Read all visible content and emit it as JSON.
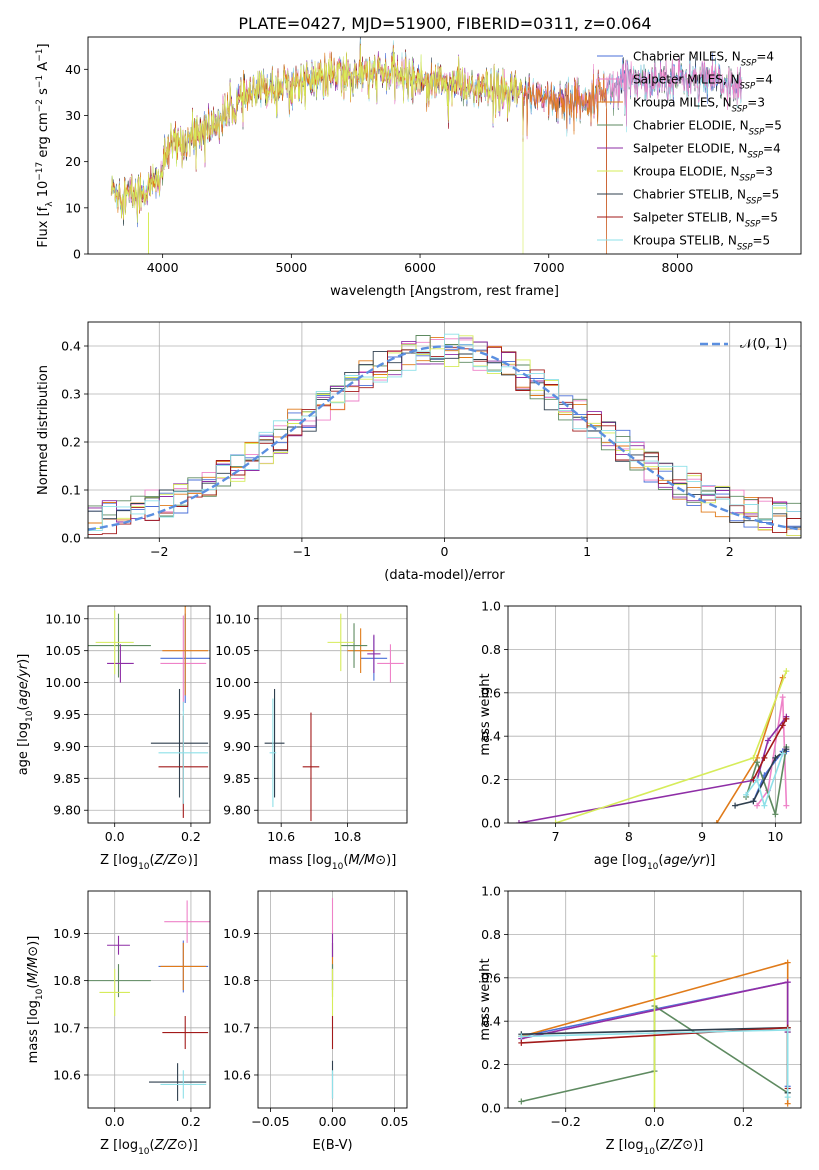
{
  "figure": {
    "title": "PLATE=0427, MJD=51900, FIBERID=0311, z=0.064"
  },
  "colors": [
    "#4a6fd8",
    "#ee82c8",
    "#e07b1a",
    "#5e8a60",
    "#8e2ea6",
    "#d6ec5a",
    "#2f3f4e",
    "#a21a1a",
    "#8ee0e8"
  ],
  "chart_data": [
    {
      "id": "spectrum",
      "type": "line",
      "xlabel": "wavelength [Angstrom, rest frame]",
      "ylabel": "Flux [f_λ 10^-17 erg cm^-2 s^-1 A^-1]",
      "xlim": [
        3420,
        8960
      ],
      "ylim": [
        0,
        47
      ],
      "xticks": [
        4000,
        5000,
        6000,
        7000,
        8000
      ],
      "yticks": [
        0,
        10,
        20,
        30,
        40
      ],
      "grid": false,
      "legend": "upper-right",
      "series": [
        {
          "name": "Chabrier MILES, N_SSP=4",
          "range": [
            3600,
            8500
          ]
        },
        {
          "name": "Salpeter MILES, N_SSP=4",
          "range": [
            3600,
            8500
          ]
        },
        {
          "name": "Kroupa MILES, N_SSP=3",
          "range": [
            3600,
            7450
          ]
        },
        {
          "name": "Chabrier ELODIE, N_SSP=5",
          "range": [
            3600,
            8500
          ]
        },
        {
          "name": "Salpeter ELODIE, N_SSP=4",
          "range": [
            3600,
            7450
          ]
        },
        {
          "name": "Kroupa ELODIE, N_SSP=3",
          "range": [
            3600,
            6800
          ]
        },
        {
          "name": "Chabrier STELIB, N_SSP=5",
          "range": [
            3600,
            8500
          ]
        },
        {
          "name": "Salpeter STELIB, N_SSP=5",
          "range": [
            3600,
            7450
          ]
        },
        {
          "name": "Kroupa STELIB, N_SSP=5",
          "range": [
            3600,
            8500
          ]
        }
      ],
      "continuum": [
        [
          3600,
          14
        ],
        [
          3700,
          13
        ],
        [
          3800,
          13
        ],
        [
          3900,
          14
        ],
        [
          3970,
          16
        ],
        [
          4050,
          23
        ],
        [
          4200,
          25
        ],
        [
          4400,
          28
        ],
        [
          4600,
          33
        ],
        [
          4800,
          36
        ],
        [
          5000,
          37
        ],
        [
          5200,
          38
        ],
        [
          5400,
          39
        ],
        [
          5600,
          39
        ],
        [
          5800,
          39
        ],
        [
          6000,
          38
        ],
        [
          6200,
          37
        ],
        [
          6400,
          36
        ],
        [
          6600,
          35
        ],
        [
          6800,
          35
        ],
        [
          7000,
          34
        ],
        [
          7200,
          33
        ],
        [
          7400,
          35
        ],
        [
          7600,
          38
        ],
        [
          7800,
          38
        ],
        [
          8000,
          38
        ],
        [
          8200,
          37.5
        ],
        [
          8400,
          37
        ],
        [
          8500,
          36
        ]
      ]
    },
    {
      "id": "residuals",
      "type": "histogram",
      "xlabel": "(data-model)/error",
      "ylabel": "Normed distribution",
      "xlim": [
        -2.5,
        2.5
      ],
      "ylim": [
        0,
        0.45
      ],
      "xticks": [
        -2,
        -1,
        0,
        1,
        2
      ],
      "yticks": [
        0.0,
        0.1,
        0.2,
        0.3,
        0.4
      ],
      "grid": true,
      "legend": "upper-right",
      "bins": 50,
      "reference": {
        "name": "𝒩(0, 1)",
        "mean": 0,
        "sigma": 1
      }
    },
    {
      "id": "age-vs-Z",
      "type": "scatter",
      "xlabel": "Z [log10(Z/Z⊙)]",
      "ylabel": "age  [log10(age/yr)]",
      "xlim": [
        -0.07,
        0.25
      ],
      "ylim": [
        9.78,
        10.12
      ],
      "xticks": [
        0.0,
        0.2
      ],
      "yticks": [
        9.8,
        9.85,
        9.9,
        9.95,
        10.0,
        10.05,
        10.1
      ],
      "grid": true,
      "points": [
        {
          "x": 0.185,
          "y": 10.038,
          "xerr": 0.065,
          "yerr": 0.07
        },
        {
          "x": 0.18,
          "y": 10.03,
          "xerr": 0.06,
          "yerr": 0.075
        },
        {
          "x": 0.185,
          "y": 10.05,
          "xerr": 0.06,
          "yerr": 0.07
        },
        {
          "x": 0.01,
          "y": 10.058,
          "xerr": 0.085,
          "yerr": 0.05
        },
        {
          "x": 0.015,
          "y": 10.03,
          "xerr": 0.035,
          "yerr": 0.03
        },
        {
          "x": 0.0,
          "y": 10.063,
          "xerr": 0.05,
          "yerr": 0.05
        },
        {
          "x": 0.17,
          "y": 9.905,
          "xerr": 0.075,
          "yerr": 0.085
        },
        {
          "x": 0.18,
          "y": 9.868,
          "xerr": 0.065,
          "yerr": 0.08
        },
        {
          "x": 0.18,
          "y": 9.89,
          "xerr": 0.065,
          "yerr": 0.08
        }
      ]
    },
    {
      "id": "age-vs-mass",
      "type": "scatter",
      "xlabel": "mass [log10(M/M⊙)]",
      "ylabel": "",
      "xlim": [
        10.53,
        10.98
      ],
      "ylim": [
        9.78,
        10.12
      ],
      "xticks": [
        10.6,
        10.8
      ],
      "yticks": [
        9.8,
        9.85,
        9.9,
        9.95,
        10.0,
        10.05,
        10.1
      ],
      "grid": true,
      "points": [
        {
          "x": 10.88,
          "y": 10.038,
          "xerr": 0.04,
          "yerr": 0.035
        },
        {
          "x": 10.93,
          "y": 10.03,
          "xerr": 0.04,
          "yerr": 0.03
        },
        {
          "x": 10.84,
          "y": 10.05,
          "xerr": 0.04,
          "yerr": 0.035
        },
        {
          "x": 10.82,
          "y": 10.058,
          "xerr": 0.04,
          "yerr": 0.035
        },
        {
          "x": 10.88,
          "y": 10.045,
          "xerr": 0.02,
          "yerr": 0.03
        },
        {
          "x": 10.78,
          "y": 10.063,
          "xerr": 0.04,
          "yerr": 0.045
        },
        {
          "x": 10.58,
          "y": 9.905,
          "xerr": 0.03,
          "yerr": 0.085
        },
        {
          "x": 10.69,
          "y": 9.868,
          "xerr": 0.025,
          "yerr": 0.085
        },
        {
          "x": 10.575,
          "y": 9.89,
          "xerr": 0.01,
          "yerr": 0.085
        }
      ]
    },
    {
      "id": "weight-vs-age",
      "type": "line",
      "xlabel": "age  [log10(age/yr)]",
      "ylabel": "mass weight",
      "xlim": [
        6.35,
        10.35
      ],
      "ylim": [
        0,
        1.0
      ],
      "xticks": [
        7,
        8,
        9,
        10
      ],
      "yticks": [
        0.0,
        0.2,
        0.4,
        0.6,
        0.8,
        1.0
      ],
      "grid": true,
      "series": [
        {
          "x": [
            9.7,
            9.85,
            10.1,
            10.15
          ],
          "y": [
            0.1,
            0.22,
            0.33,
            0.33
          ]
        },
        {
          "x": [
            9.75,
            9.9,
            10.1,
            10.15
          ],
          "y": [
            0.08,
            0.15,
            0.58,
            0.08
          ]
        },
        {
          "x": [
            9.2,
            9.75,
            10.1
          ],
          "y": [
            0.0,
            0.3,
            0.67
          ]
        },
        {
          "x": [
            9.6,
            9.75,
            10.0,
            10.15
          ],
          "y": [
            0.12,
            0.28,
            0.04,
            0.35
          ]
        },
        {
          "x": [
            6.5,
            9.75,
            9.9,
            10.15
          ],
          "y": [
            0.0,
            0.2,
            0.38,
            0.49
          ]
        },
        {
          "x": [
            7.0,
            9.7,
            10.15
          ],
          "y": [
            0.0,
            0.3,
            0.7
          ]
        },
        {
          "x": [
            9.45,
            9.7,
            10.0,
            10.15
          ],
          "y": [
            0.08,
            0.1,
            0.3,
            0.34
          ]
        },
        {
          "x": [
            9.7,
            9.85,
            10.1,
            10.15
          ],
          "y": [
            0.2,
            0.3,
            0.45,
            0.48
          ]
        },
        {
          "x": [
            9.6,
            9.75,
            9.85,
            10.1
          ],
          "y": [
            0.13,
            0.2,
            0.08,
            0.32
          ]
        }
      ]
    },
    {
      "id": "mass-vs-Z",
      "type": "scatter",
      "xlabel": "Z [log10(Z/Z⊙)]",
      "ylabel": "mass [log10(M/M⊙)]",
      "xlim": [
        -0.07,
        0.25
      ],
      "ylim": [
        10.53,
        10.99
      ],
      "xticks": [
        0.0,
        0.2
      ],
      "yticks": [
        10.6,
        10.7,
        10.8,
        10.9
      ],
      "grid": true,
      "points": [
        {
          "x": 0.18,
          "y": 10.83,
          "xerr": 0.065,
          "yerr": 0.055
        },
        {
          "x": 0.19,
          "y": 10.925,
          "xerr": 0.06,
          "yerr": 0.045
        },
        {
          "x": 0.18,
          "y": 10.83,
          "xerr": 0.06,
          "yerr": 0.05
        },
        {
          "x": 0.01,
          "y": 10.8,
          "xerr": 0.085,
          "yerr": 0.035
        },
        {
          "x": 0.01,
          "y": 10.875,
          "xerr": 0.03,
          "yerr": 0.02
        },
        {
          "x": 0.0,
          "y": 10.775,
          "xerr": 0.04,
          "yerr": 0.05
        },
        {
          "x": 0.165,
          "y": 10.585,
          "xerr": 0.075,
          "yerr": 0.04
        },
        {
          "x": 0.185,
          "y": 10.69,
          "xerr": 0.06,
          "yerr": 0.035
        },
        {
          "x": 0.18,
          "y": 10.58,
          "xerr": 0.06,
          "yerr": 0.03
        }
      ]
    },
    {
      "id": "mass-vs-ebv",
      "type": "scatter",
      "xlabel": "E(B-V)",
      "ylabel": "",
      "xlim": [
        -0.06,
        0.06
      ],
      "ylim": [
        10.53,
        10.99
      ],
      "xticks": [
        -0.05,
        0.0,
        0.05
      ],
      "xtick_labels": [
        "−0.05",
        "0.00",
        "0.05"
      ],
      "yticks": [
        10.6,
        10.7,
        10.8,
        10.9
      ],
      "grid": true,
      "points": [
        {
          "x": 0,
          "y": 10.83,
          "xerr": 0,
          "yerr": 0.05
        },
        {
          "x": 0,
          "y": 10.93,
          "xerr": 0,
          "yerr": 0.045
        },
        {
          "x": 0,
          "y": 10.83,
          "xerr": 0,
          "yerr": 0.05
        },
        {
          "x": 0,
          "y": 10.8,
          "xerr": 0,
          "yerr": 0.035
        },
        {
          "x": 0,
          "y": 10.875,
          "xerr": 0,
          "yerr": 0.025
        },
        {
          "x": 0,
          "y": 10.775,
          "xerr": 0,
          "yerr": 0.05
        },
        {
          "x": 0,
          "y": 10.59,
          "xerr": 0,
          "yerr": 0.04
        },
        {
          "x": 0,
          "y": 10.69,
          "xerr": 0,
          "yerr": 0.035
        },
        {
          "x": 0,
          "y": 10.58,
          "xerr": 0,
          "yerr": 0.03
        }
      ]
    },
    {
      "id": "weight-vs-Z",
      "type": "line",
      "xlabel": "Z [log10(Z/Z⊙)]",
      "ylabel": "mass weight",
      "xlim": [
        -0.33,
        0.33
      ],
      "ylim": [
        0,
        1.0
      ],
      "xticks": [
        -0.2,
        0.0,
        0.2
      ],
      "xtick_labels": [
        "−0.2",
        "0.0",
        "0.2"
      ],
      "yticks": [
        0.0,
        0.2,
        0.4,
        0.6,
        0.8,
        1.0
      ],
      "grid": true,
      "series": [
        {
          "x": [
            -0.3,
            0.3,
            0.3
          ],
          "y": [
            0.33,
            0.58,
            0.1
          ]
        },
        {
          "x": [
            -0.3,
            0.3,
            0.3
          ],
          "y": [
            0.32,
            0.58,
            0.36
          ]
        },
        {
          "x": [
            -0.3,
            0.3,
            0.3
          ],
          "y": [
            0.33,
            0.67,
            0.02
          ]
        },
        {
          "x": [
            -0.3,
            0.0,
            0.0,
            0.3,
            0.3
          ],
          "y": [
            0.03,
            0.17,
            0.47,
            0.07,
            0.35
          ]
        },
        {
          "x": [
            -0.3,
            0.3,
            0.3
          ],
          "y": [
            0.32,
            0.58,
            0.35
          ]
        },
        {
          "x": [
            0.0,
            0.0
          ],
          "y": [
            0.0,
            0.7
          ]
        },
        {
          "x": [
            -0.3,
            0.3,
            0.3
          ],
          "y": [
            0.34,
            0.37,
            0.07
          ]
        },
        {
          "x": [
            -0.3,
            0.3,
            0.3
          ],
          "y": [
            0.3,
            0.37,
            0.09
          ]
        },
        {
          "x": [
            -0.3,
            0.3,
            0.3
          ],
          "y": [
            0.33,
            0.36,
            0.05
          ]
        }
      ]
    }
  ]
}
